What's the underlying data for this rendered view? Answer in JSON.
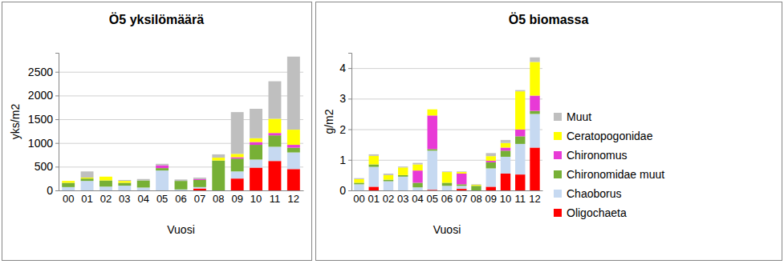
{
  "chart_data": [
    {
      "type": "bar",
      "stacked": true,
      "grid": true,
      "legend": false,
      "title": "Ö5 yksilömäärä",
      "x_label": "Vuosi",
      "y_label": "yks/m2",
      "categories": [
        "00",
        "01",
        "02",
        "03",
        "04",
        "05",
        "06",
        "07",
        "08",
        "09",
        "10",
        "11",
        "12"
      ],
      "ylim": [
        0,
        2900
      ],
      "yticks": [
        0,
        500,
        1000,
        1500,
        2000,
        2500
      ],
      "series": [
        {
          "name": "Oligochaeta",
          "color": "#ff0000",
          "values": [
            0,
            0,
            0,
            0,
            0,
            0,
            0,
            40,
            0,
            250,
            480,
            620,
            450
          ]
        },
        {
          "name": "Chaoborus",
          "color": "#c6d9f1",
          "values": [
            70,
            200,
            80,
            100,
            60,
            420,
            20,
            30,
            0,
            150,
            170,
            300,
            350
          ]
        },
        {
          "name": "Chironomidae muut",
          "color": "#77b036",
          "values": [
            90,
            50,
            130,
            60,
            150,
            50,
            180,
            150,
            630,
            270,
            310,
            240,
            100
          ]
        },
        {
          "name": "Chironomus",
          "color": "#e83ad6",
          "values": [
            0,
            0,
            0,
            0,
            0,
            60,
            0,
            20,
            0,
            30,
            60,
            50,
            60
          ]
        },
        {
          "name": "Ceratopogonidae",
          "color": "#ffff00",
          "values": [
            40,
            20,
            80,
            40,
            0,
            0,
            0,
            0,
            60,
            70,
            80,
            300,
            320
          ]
        },
        {
          "name": "Muut",
          "color": "#bfbfbf",
          "values": [
            0,
            130,
            0,
            20,
            30,
            30,
            30,
            30,
            70,
            880,
            620,
            790,
            1540
          ]
        }
      ]
    },
    {
      "type": "bar",
      "stacked": true,
      "grid": true,
      "legend": "right",
      "title": "Ö5 biomassa",
      "x_label": "Vuosi",
      "y_label": "g/m2",
      "categories": [
        "00",
        "01",
        "02",
        "03",
        "04",
        "05",
        "06",
        "07",
        "08",
        "09",
        "10",
        "11",
        "12"
      ],
      "ylim": [
        0,
        4.5
      ],
      "yticks": [
        0,
        1,
        2,
        3,
        4
      ],
      "series": [
        {
          "name": "Oligochaeta",
          "color": "#ff0000",
          "values": [
            0,
            0.12,
            0,
            0,
            0,
            0.02,
            0,
            0.05,
            0,
            0.12,
            0.55,
            0.52,
            1.4
          ]
        },
        {
          "name": "Chaoborus",
          "color": "#c6d9f1",
          "values": [
            0.2,
            0.65,
            0.3,
            0.45,
            0.1,
            1.28,
            0.15,
            0.1,
            0,
            0.6,
            0.55,
            1.0,
            1.1
          ]
        },
        {
          "name": "Chironomidae muut",
          "color": "#77b036",
          "values": [
            0.05,
            0.08,
            0.05,
            0.05,
            0.15,
            0.05,
            0.1,
            0.05,
            0.15,
            0.2,
            0.2,
            0.25,
            0.1
          ]
        },
        {
          "name": "Chironomus",
          "color": "#e83ad6",
          "values": [
            0,
            0,
            0,
            0,
            0.4,
            1.1,
            0,
            0.35,
            0,
            0.05,
            0.1,
            0.22,
            0.5
          ]
        },
        {
          "name": "Ceratopogonidae",
          "color": "#ffff00",
          "values": [
            0.12,
            0.28,
            0.15,
            0.25,
            0.2,
            0.2,
            0.35,
            0.05,
            0.03,
            0.15,
            0.15,
            1.25,
            1.1
          ]
        },
        {
          "name": "Muut",
          "color": "#bfbfbf",
          "values": [
            0.03,
            0.05,
            0.05,
            0.03,
            0.05,
            0,
            0.02,
            0.02,
            0.02,
            0.1,
            0.1,
            0.04,
            0.15
          ]
        }
      ]
    }
  ]
}
